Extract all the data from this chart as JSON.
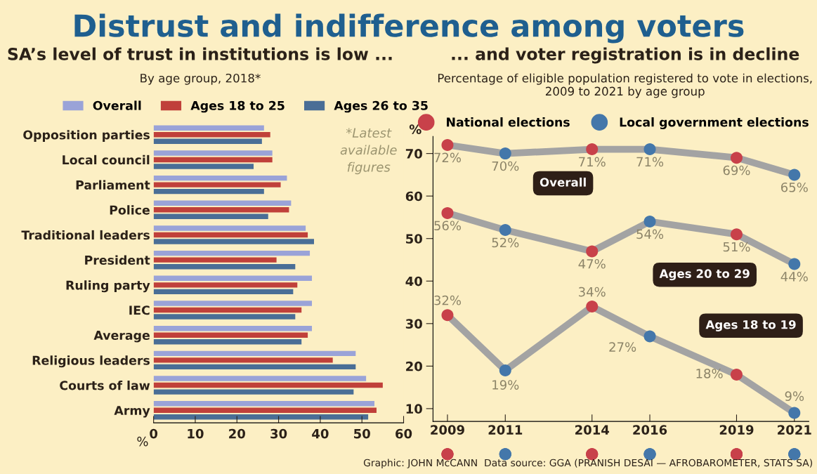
{
  "chart_data": [
    {
      "type": "bar",
      "orientation": "horizontal",
      "title": "SA’s level of trust in institutions is low ...",
      "subtitle": "By age group, 2018*",
      "xlabel": "%",
      "categories": [
        "Opposition parties",
        "Local council",
        "Parliament",
        "Police",
        "Traditional leaders",
        "President",
        "Ruling party",
        "IEC",
        "Average",
        "Religious leaders",
        "Courts of law",
        "Army"
      ],
      "series": [
        {
          "name": "Overall",
          "color": "#9aa3d8",
          "values": [
            26.5,
            28.5,
            32,
            33,
            36.5,
            37.5,
            38,
            38,
            38,
            48.5,
            51,
            53
          ]
        },
        {
          "name": "Ages 18 to 25",
          "color": "#c0403a",
          "values": [
            28,
            28.5,
            30.5,
            32.5,
            37,
            29.5,
            34.5,
            35.5,
            37,
            43,
            55,
            53.5
          ]
        },
        {
          "name": "Ages 26 to 35",
          "color": "#4a6e96",
          "values": [
            26,
            24,
            26.5,
            27.5,
            38.5,
            34,
            33.5,
            34,
            35.5,
            48.5,
            48,
            51.5
          ]
        }
      ],
      "xlim": [
        0,
        60
      ],
      "xticks": [
        0,
        10,
        20,
        30,
        40,
        50,
        60
      ],
      "tick_labels": "xy",
      "legend": "top",
      "grid": false,
      "annotations": [
        "Distrust and indifference among voters",
        "*Latest available figures"
      ]
    },
    {
      "type": "line",
      "title": "... and voter registration is in decline",
      "subtitle": "Percentage of eligible population registered to vote in elections, 2009 to 2021 by age group",
      "ylabel": "%",
      "x": [
        2009,
        2011,
        2014,
        2016,
        2019,
        2021
      ],
      "series": [
        {
          "name": "Overall",
          "color": "#a3a3a3",
          "values": [
            72,
            70,
            71,
            71,
            69,
            65
          ],
          "value_labels": [
            "72%",
            "70%",
            "71%",
            "71%",
            "69%",
            "65%"
          ]
        },
        {
          "name": "Ages 20 to 29",
          "color": "#a3a3a3",
          "values": [
            56,
            52,
            47,
            54,
            51,
            44
          ],
          "value_labels": [
            "56%",
            "52%",
            "47%",
            "54%",
            "51%",
            "44%"
          ]
        },
        {
          "name": "Ages 18 to 19",
          "color": "#a3a3a3",
          "values": [
            32,
            19,
            34,
            27,
            18,
            9
          ],
          "value_labels": [
            "32%",
            "19%",
            "34%",
            "27%",
            "18%",
            "9%"
          ]
        },
        {
          "name": "National elections",
          "type": "scatter",
          "color": "#c8414a",
          "x": [
            2009,
            2014,
            2019,
            2009,
            2014,
            2019,
            2009,
            2014,
            2019
          ],
          "values": [
            72,
            71,
            69,
            56,
            47,
            51,
            32,
            34,
            18
          ]
        },
        {
          "name": "Local government elections",
          "type": "scatter",
          "color": "#4477aa",
          "x": [
            2011,
            2016,
            2021,
            2011,
            2016,
            2021,
            2011,
            2016,
            2021
          ],
          "values": [
            70,
            71,
            65,
            52,
            54,
            44,
            19,
            27,
            9
          ]
        }
      ],
      "xlim": [
        2008.5,
        2021.5
      ],
      "xticks": [
        2009,
        2011,
        2014,
        2016,
        2019,
        2021
      ],
      "ylim": [
        7,
        74
      ],
      "yticks": [
        10,
        20,
        30,
        40,
        50,
        60,
        70
      ],
      "legend": "top",
      "grid": false,
      "line_style": "solid",
      "annotations": [
        "Graphic: JOHN McCANN  Data source: GGA (PRANISH DESAI — AFROBAROMETER, STATS SA)"
      ]
    }
  ]
}
